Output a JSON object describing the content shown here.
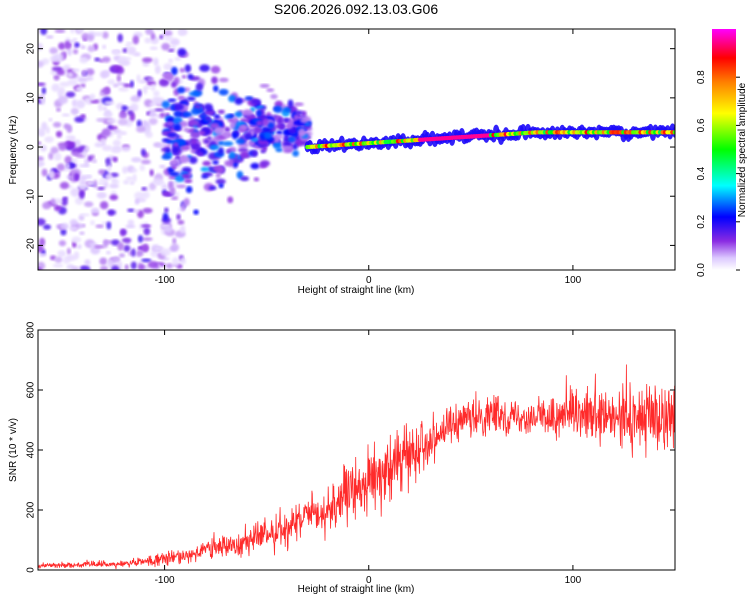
{
  "title": "S206.2026.092.13.03.G06",
  "chart_data": [
    {
      "type": "heatmap",
      "xlabel": "Height of straight line (km)",
      "ylabel": "Frequency (Hz)",
      "xlim": [
        -162,
        150
      ],
      "ylim": [
        -25,
        24
      ],
      "xticks": [
        -100,
        0,
        100
      ],
      "yticks": [
        20,
        10,
        0,
        -10,
        -20
      ],
      "colorbar": {
        "label": "Normalized spectral amplitude",
        "range": [
          0,
          1
        ],
        "ticks": [
          0.0,
          0.2,
          0.4,
          0.6,
          0.8
        ],
        "tick_labels": [
          "0.0",
          "0.2",
          "0.4",
          "0.6",
          "0.8"
        ],
        "colormap": [
          "#ffffff",
          "#dcc8ff",
          "#8a2be2",
          "#0000ff",
          "#00ffff",
          "#00ff00",
          "#ffff00",
          "#ff7f00",
          "#ff0000",
          "#ff00ff"
        ]
      },
      "features": [
        {
          "description": "scattered low-amplitude blobs",
          "x_range": [
            -162,
            -100
          ],
          "freq_range": [
            -25,
            24
          ],
          "amplitude": 0.1
        },
        {
          "description": "diffuse broadening band",
          "x_range": [
            -100,
            -30
          ],
          "freq_range": [
            -15,
            9
          ],
          "amplitude": 0.25
        },
        {
          "description": "narrow carrier line",
          "x_range": [
            -30,
            150
          ],
          "freq_center_start": 0,
          "freq_center_end": 3,
          "amplitude": 0.95
        }
      ]
    },
    {
      "type": "line",
      "xlabel": "Height of straight line (km)",
      "ylabel": "SNR (10 * v/v)",
      "xlim": [
        -162,
        150
      ],
      "ylim": [
        0,
        800
      ],
      "xticks": [
        -100,
        0,
        100
      ],
      "yticks": [
        0,
        200,
        400,
        600,
        800
      ],
      "series": [
        {
          "name": "SNR",
          "color": "#ff2a2a",
          "x": [
            -162,
            -140,
            -120,
            -100,
            -80,
            -60,
            -40,
            -20,
            -10,
            0,
            10,
            20,
            40,
            60,
            80,
            100,
            120,
            140,
            150
          ],
          "mean": [
            15,
            17,
            20,
            35,
            65,
            95,
            140,
            200,
            250,
            300,
            330,
            390,
            480,
            520,
            510,
            510,
            500,
            510,
            520
          ],
          "spread": [
            8,
            8,
            10,
            20,
            35,
            45,
            55,
            70,
            85,
            95,
            95,
            80,
            60,
            55,
            55,
            65,
            90,
            120,
            90
          ]
        }
      ]
    }
  ]
}
